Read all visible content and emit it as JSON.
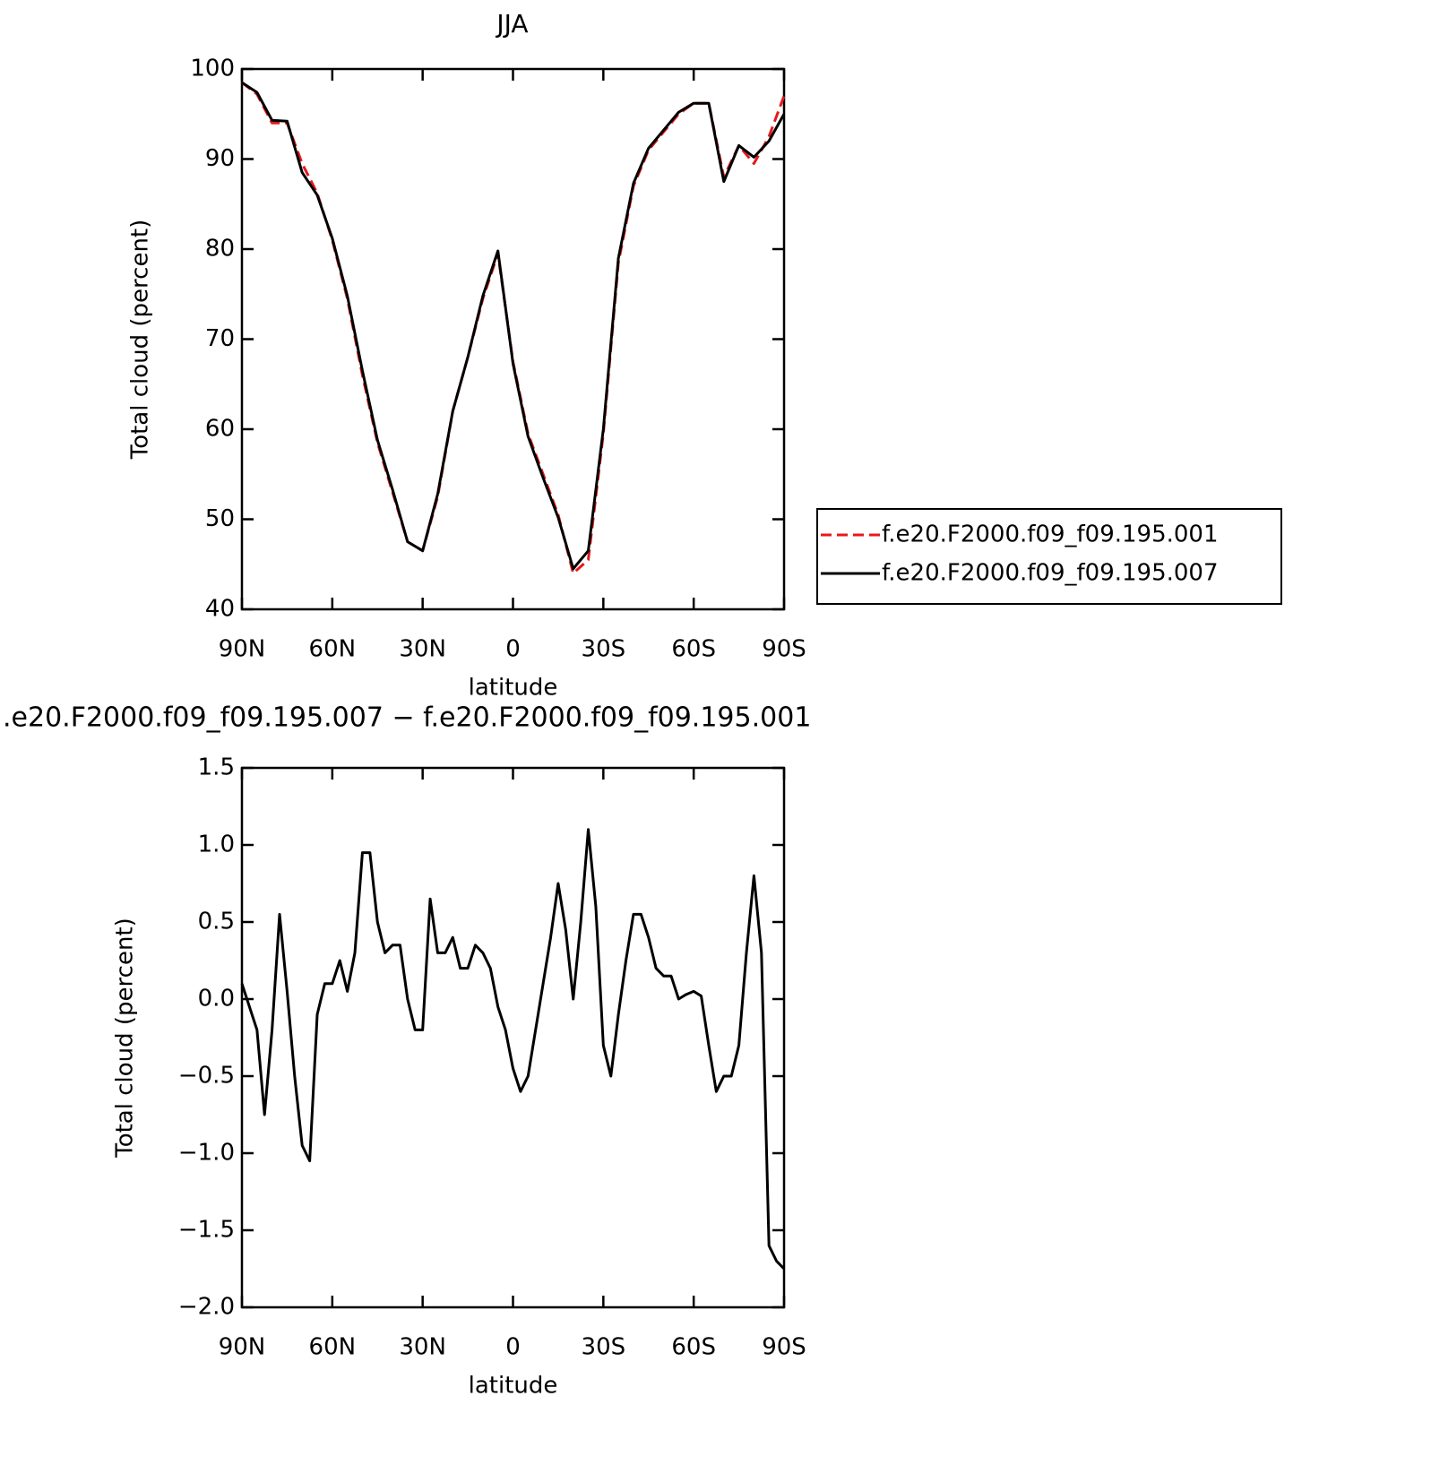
{
  "chart_data": [
    {
      "type": "line",
      "title": "JJA",
      "xlabel": "latitude",
      "ylabel": "Total cloud (percent)",
      "x": [
        90,
        85,
        80,
        75,
        70,
        65,
        60,
        55,
        50,
        45,
        40,
        35,
        30,
        25,
        20,
        15,
        10,
        5,
        0,
        -5,
        -10,
        -15,
        -20,
        -25,
        -30,
        -35,
        -40,
        -45,
        -50,
        -55,
        -60,
        -65,
        -70,
        -75,
        -80,
        -85,
        -90
      ],
      "series": [
        {
          "name": "f.e20.F2000.f09_f09.195.001",
          "color": "#e41a1c",
          "style": "dashed",
          "values": [
            98.5,
            97.2,
            94.0,
            94.0,
            89.5,
            86.2,
            81.0,
            74.5,
            66.0,
            58.5,
            53.0,
            47.5,
            46.5,
            52.5,
            62.0,
            68.0,
            74.5,
            79.5,
            67.5,
            59.5,
            55.0,
            50.5,
            44.0,
            45.5,
            59.5,
            78.5,
            87.0,
            91.0,
            93.0,
            95.0,
            96.2,
            96.2,
            88.0,
            91.5,
            89.5,
            92.5,
            97.0
          ]
        },
        {
          "name": "f.e20.F2000.f09_f09.195.007",
          "color": "#000000",
          "style": "solid",
          "values": [
            98.5,
            97.4,
            94.3,
            94.2,
            88.5,
            86.0,
            81.2,
            74.8,
            66.5,
            58.8,
            53.3,
            47.5,
            46.5,
            52.8,
            62.0,
            68.0,
            74.8,
            79.8,
            67.3,
            59.2,
            54.6,
            50.2,
            44.5,
            46.5,
            60.0,
            79.0,
            87.3,
            91.2,
            93.2,
            95.2,
            96.2,
            96.2,
            87.5,
            91.5,
            90.2,
            92.0,
            95.0
          ]
        }
      ],
      "xlim": [
        90,
        -90
      ],
      "xticks": [
        {
          "value": 90,
          "label": "90N"
        },
        {
          "value": 60,
          "label": "60N"
        },
        {
          "value": 30,
          "label": "30N"
        },
        0,
        {
          "value": -30,
          "label": "30S"
        },
        {
          "value": -60,
          "label": "60S"
        },
        {
          "value": -90,
          "label": "90S"
        }
      ],
      "ylim": [
        40,
        100
      ],
      "yticks": [
        40,
        50,
        60,
        70,
        80,
        90,
        100
      ],
      "legend": "right"
    },
    {
      "type": "line",
      "title": ".e20.F2000.f09_f09.195.007 − f.e20.F2000.f09_f09.195.001",
      "xlabel": "latitude",
      "ylabel": "Total cloud (percent)",
      "x": [
        90,
        87.5,
        85,
        82.5,
        80,
        77.5,
        75,
        72.5,
        70,
        67.5,
        65,
        62.5,
        60,
        57.5,
        55,
        52.5,
        50,
        47.5,
        45,
        42.5,
        40,
        37.5,
        35,
        32.5,
        30,
        27.5,
        25,
        22.5,
        20,
        17.5,
        15,
        12.5,
        10,
        7.5,
        5,
        2.5,
        0,
        -2.5,
        -5,
        -7.5,
        -10,
        -12.5,
        -15,
        -17.5,
        -20,
        -22.5,
        -25,
        -27.5,
        -30,
        -32.5,
        -35,
        -37.5,
        -40,
        -42.5,
        -45,
        -47.5,
        -50,
        -52.5,
        -55,
        -57.5,
        -60,
        -62.5,
        -65,
        -67.5,
        -70,
        -72.5,
        -75,
        -77.5,
        -80,
        -82.5,
        -85,
        -87.5,
        -90
      ],
      "series": [
        {
          "color": "#000000",
          "style": "solid",
          "values": [
            0.1,
            -0.05,
            -0.2,
            -0.75,
            -0.2,
            0.55,
            0.05,
            -0.5,
            -0.95,
            -1.05,
            -0.1,
            0.1,
            0.1,
            0.25,
            0.05,
            0.3,
            0.95,
            0.95,
            0.5,
            0.3,
            0.35,
            0.35,
            0.0,
            -0.2,
            -0.2,
            0.65,
            0.3,
            0.3,
            0.4,
            0.2,
            0.2,
            0.35,
            0.3,
            0.2,
            -0.05,
            -0.2,
            -0.45,
            -0.6,
            -0.5,
            -0.2,
            0.1,
            0.4,
            0.75,
            0.45,
            0.0,
            0.5,
            1.1,
            0.6,
            -0.3,
            -0.5,
            -0.1,
            0.25,
            0.55,
            0.55,
            0.4,
            0.2,
            0.15,
            0.15,
            0.0,
            0.03,
            0.05,
            0.02,
            -0.3,
            -0.6,
            -0.5,
            -0.5,
            -0.3,
            0.3,
            0.8,
            0.3,
            -1.6,
            -1.7,
            -1.75
          ]
        }
      ],
      "xlim": [
        90,
        -90
      ],
      "xticks": [
        {
          "value": 90,
          "label": "90N"
        },
        {
          "value": 60,
          "label": "60N"
        },
        {
          "value": 30,
          "label": "30N"
        },
        0,
        {
          "value": -30,
          "label": "30S"
        },
        {
          "value": -60,
          "label": "60S"
        },
        {
          "value": -90,
          "label": "90S"
        }
      ],
      "ylim": [
        -2,
        1.5
      ],
      "yticks": [
        {
          "value": -2,
          "label": "−2.0"
        },
        {
          "value": -1.5,
          "label": "−1.5"
        },
        {
          "value": -1,
          "label": "−1.0"
        },
        {
          "value": -0.5,
          "label": "−0.5"
        },
        {
          "value": 0,
          "label": "0.0"
        },
        0.5,
        {
          "value": 1,
          "label": "1.0"
        },
        1.5
      ]
    }
  ]
}
